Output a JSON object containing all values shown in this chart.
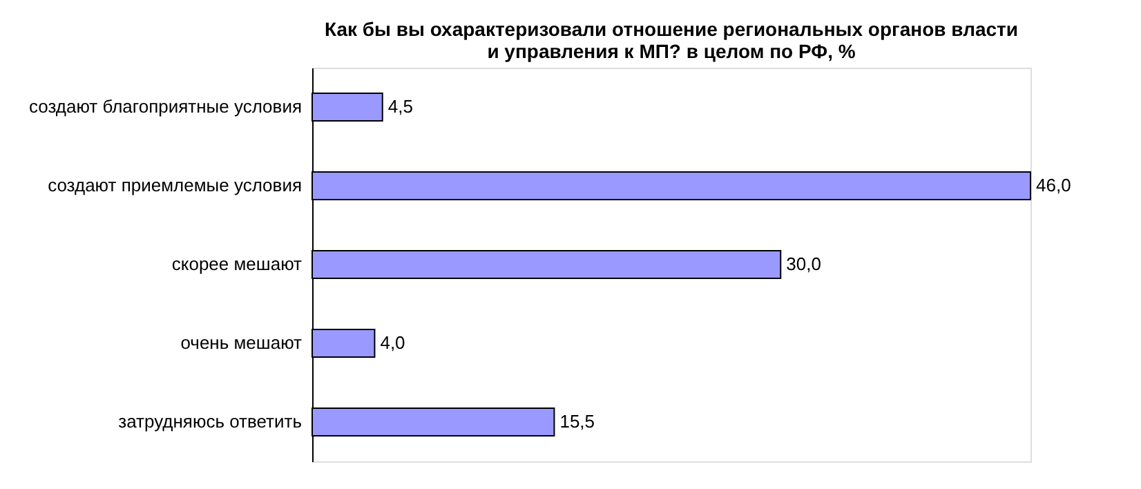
{
  "chart_data": {
    "type": "bar",
    "orientation": "horizontal",
    "title": [
      "Как бы вы охарактеризовали отношение региональных органов власти",
      "и управления к МП? в целом по РФ, %"
    ],
    "categories": [
      "создают благоприятные условия",
      "создают приемлемые условия",
      "скорее мешают",
      "очень мешают",
      "затрудняюсь ответить"
    ],
    "values": [
      4.5,
      46.0,
      30.0,
      4.0,
      15.5
    ],
    "value_labels": [
      "4,5",
      "46,0",
      "30,0",
      "4,0",
      "15,5"
    ],
    "color": "#9999ff",
    "grid": false
  }
}
